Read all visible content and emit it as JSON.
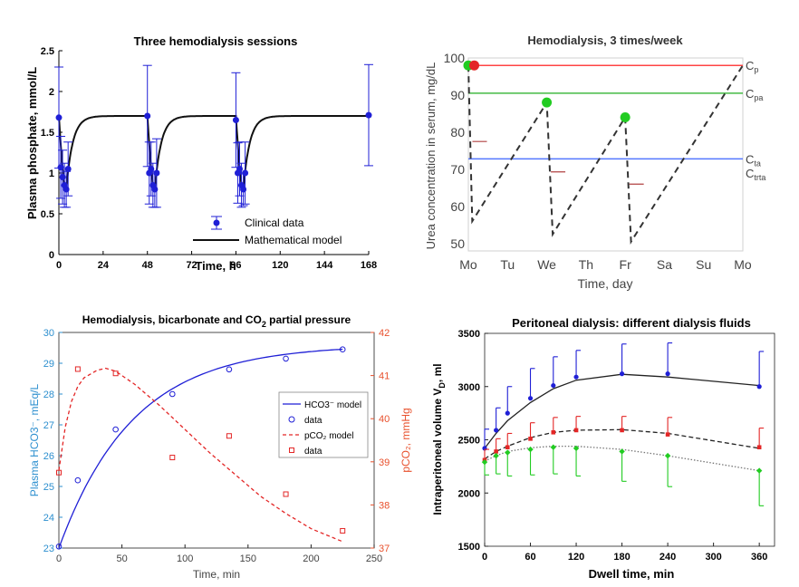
{
  "colors": {
    "blue": "#1f1fd6",
    "red": "#e32626",
    "green": "#22cc22",
    "black": "#111111",
    "teal": "#2d8fcf",
    "orange": "#e8502c",
    "ref_red": "#ff4444",
    "ref_green": "#44bb44",
    "ref_blue": "#5577ff",
    "brown": "#b04040"
  },
  "chart_data": [
    {
      "id": "phosphate",
      "type": "line",
      "title": "Three hemodialysis sessions",
      "xlabel": "Time, h",
      "ylabel": "Plasma phosphate, mmol/L",
      "xlim": [
        0,
        168
      ],
      "ylim": [
        0,
        2.5
      ],
      "xticks": [
        "0",
        "24",
        "48",
        "72",
        "96",
        "120",
        "144",
        "168"
      ],
      "yticks": [
        "0",
        "0.5",
        "1",
        "1.5",
        "2",
        "2.5"
      ],
      "legend": {
        "data": "Clinical data",
        "model": "Mathematical model"
      },
      "series": [
        {
          "name": "Clinical data",
          "points": [
            {
              "x": 0,
              "y": 1.68,
              "err": 0.62
            },
            {
              "x": 1,
              "y": 1.07,
              "err": 0.38
            },
            {
              "x": 2,
              "y": 0.95,
              "err": 0.33
            },
            {
              "x": 3,
              "y": 0.85,
              "err": 0.27
            },
            {
              "x": 4,
              "y": 0.8,
              "err": 0.22
            },
            {
              "x": 5,
              "y": 1.05,
              "err": 0.33
            },
            {
              "x": 48,
              "y": 1.7,
              "err": 0.62
            },
            {
              "x": 49,
              "y": 1.0,
              "err": 0.38
            },
            {
              "x": 50,
              "y": 1.05,
              "err": 0.33
            },
            {
              "x": 51,
              "y": 0.85,
              "err": 0.27
            },
            {
              "x": 52,
              "y": 0.8,
              "err": 0.22
            },
            {
              "x": 53,
              "y": 1.0,
              "err": 0.42
            },
            {
              "x": 96,
              "y": 1.65,
              "err": 0.58
            },
            {
              "x": 97,
              "y": 1.0,
              "err": 0.37
            },
            {
              "x": 98,
              "y": 1.05,
              "err": 0.33
            },
            {
              "x": 99,
              "y": 0.85,
              "err": 0.27
            },
            {
              "x": 100,
              "y": 0.8,
              "err": 0.2
            },
            {
              "x": 101,
              "y": 1.0,
              "err": 0.38
            },
            {
              "x": 168,
              "y": 1.71,
              "err": 0.62
            }
          ]
        },
        {
          "name": "Mathematical model",
          "segments": [
            {
              "start": 0,
              "min_at": 4,
              "y0": 1.7,
              "ymin": 0.8,
              "yinf": 1.7
            },
            {
              "start": 48,
              "min_at": 52,
              "y0": 1.7,
              "ymin": 0.8,
              "yinf": 1.7
            },
            {
              "start": 96,
              "min_at": 100,
              "y0": 1.7,
              "ymin": 0.8,
              "yinf": 1.7
            }
          ],
          "end": 168
        }
      ]
    },
    {
      "id": "urea",
      "type": "line",
      "title": "Hemodialysis, 3 times/week",
      "xlabel": "Time, day",
      "ylabel": "Urea concentration in serum, mg/dL",
      "xticks": [
        "Mo",
        "Tu",
        "We",
        "Th",
        "Fr",
        "Sa",
        "Su",
        "Mo"
      ],
      "xlim": [
        0,
        7
      ],
      "ylim": [
        48,
        100
      ],
      "yticks": [
        "50",
        "60",
        "70",
        "80",
        "90",
        "100"
      ],
      "reference_lines": [
        {
          "name": "Cp",
          "label": "C",
          "sub": "p",
          "y": 98
        },
        {
          "name": "Cpa",
          "label": "C",
          "sub": "pa",
          "y": 90.5
        },
        {
          "name": "Cta",
          "label": "C",
          "sub": "ta",
          "y": 72.8
        }
      ],
      "extra_labels": [
        {
          "label": "C",
          "sub": "trta",
          "y": 69
        }
      ],
      "path": [
        [
          0,
          98
        ],
        [
          0.1,
          56
        ],
        [
          2,
          88
        ],
        [
          2.15,
          52.5
        ],
        [
          4,
          84
        ],
        [
          4.15,
          50.5
        ],
        [
          7,
          98
        ]
      ],
      "markers": [
        {
          "x": 0,
          "y": 98,
          "color": "green"
        },
        {
          "x": 0.15,
          "y": 98,
          "color": "red"
        },
        {
          "x": 2,
          "y": 88,
          "color": "green"
        },
        {
          "x": 4,
          "y": 84,
          "color": "green"
        }
      ],
      "ticks": [
        {
          "x": 0.15,
          "y": 77.5
        },
        {
          "x": 2.15,
          "y": 69.3
        },
        {
          "x": 4.15,
          "y": 66
        }
      ]
    },
    {
      "id": "bicarbonate",
      "type": "line",
      "title": "Hemodialysis, bicarbonate and CO",
      "title_sub": "2",
      "title_end": " partial pressure",
      "xlabel": "Time, min",
      "ylabel_left": "Plasma HCO3⁻, mEq/L",
      "ylabel_right": "pCO₂, mmHg",
      "xlim": [
        0,
        250
      ],
      "ylim_left": [
        23,
        30
      ],
      "ylim_right": [
        37,
        42
      ],
      "xticks": [
        "0",
        "50",
        "100",
        "150",
        "200",
        "250"
      ],
      "yticks_left": [
        "23",
        "24",
        "25",
        "26",
        "27",
        "28",
        "29",
        "30"
      ],
      "yticks_right": [
        "37",
        "38",
        "39",
        "40",
        "41",
        "42"
      ],
      "legend": [
        "HCO3⁻ model",
        "data",
        "pCO₂ model",
        "data"
      ],
      "series": [
        {
          "name": "HCO3⁻ data",
          "axis": "left",
          "x": [
            0,
            15,
            45,
            90,
            135,
            180,
            225
          ],
          "y": [
            23.05,
            25.2,
            26.85,
            28.0,
            28.8,
            29.15,
            29.45
          ]
        },
        {
          "name": "HCO3⁻ model",
          "axis": "left",
          "model": {
            "a": 23,
            "b": 6.6,
            "k": 0.017
          }
        },
        {
          "name": "pCO₂ data",
          "axis": "right",
          "x": [
            0,
            15,
            45,
            90,
            135,
            180,
            225
          ],
          "y": [
            38.75,
            41.15,
            41.05,
            39.1,
            39.6,
            38.25,
            37.4
          ]
        },
        {
          "name": "pCO₂ model",
          "axis": "right",
          "points": [
            [
              0,
              38.8
            ],
            [
              5,
              39.8
            ],
            [
              10,
              40.4
            ],
            [
              15,
              40.75
            ],
            [
              20,
              40.95
            ],
            [
              30,
              41.12
            ],
            [
              37,
              41.17
            ],
            [
              45,
              41.1
            ],
            [
              60,
              40.8
            ],
            [
              80,
              40.3
            ],
            [
              100,
              39.75
            ],
            [
              120,
              39.2
            ],
            [
              140,
              38.7
            ],
            [
              160,
              38.2
            ],
            [
              180,
              37.8
            ],
            [
              200,
              37.45
            ],
            [
              225,
              37.15
            ]
          ]
        }
      ]
    },
    {
      "id": "peritoneal",
      "type": "line",
      "title": "Peritoneal dialysis: different dialysis fluids",
      "xlabel": "Dwell time, min",
      "ylabel": "Intraperitoneal volume V",
      "ylabel_sub": "D",
      "ylabel_end": ", ml",
      "xlim": [
        0,
        380
      ],
      "ylim": [
        1500,
        3500
      ],
      "xticks": [
        "0",
        "60",
        "120",
        "180",
        "240",
        "300",
        "360"
      ],
      "yticks": [
        "1500",
        "2000",
        "2500",
        "3000",
        "3500"
      ],
      "x": [
        0,
        15,
        30,
        60,
        90,
        120,
        180,
        240,
        360
      ],
      "series": [
        {
          "name": "blue",
          "y": [
            2420,
            2590,
            2750,
            2890,
            3010,
            3090,
            3120,
            3120,
            3000
          ],
          "err": [
            180,
            210,
            250,
            280,
            270,
            250,
            280,
            290,
            330
          ],
          "model": [
            2420,
            2560,
            2680,
            2850,
            2980,
            3060,
            3115,
            3090,
            3010
          ]
        },
        {
          "name": "red",
          "y": [
            2310,
            2390,
            2430,
            2510,
            2570,
            2590,
            2590,
            2550,
            2430
          ],
          "err": [
            100,
            120,
            130,
            150,
            140,
            130,
            130,
            160,
            180
          ],
          "model": [
            2320,
            2390,
            2440,
            2520,
            2570,
            2590,
            2595,
            2560,
            2420
          ]
        },
        {
          "name": "green",
          "y": [
            2290,
            2350,
            2380,
            2410,
            2430,
            2420,
            2390,
            2350,
            2210
          ],
          "err": [
            120,
            170,
            220,
            240,
            250,
            260,
            280,
            290,
            330
          ],
          "model": [
            2300,
            2350,
            2390,
            2425,
            2440,
            2440,
            2410,
            2350,
            2210
          ]
        }
      ]
    }
  ]
}
